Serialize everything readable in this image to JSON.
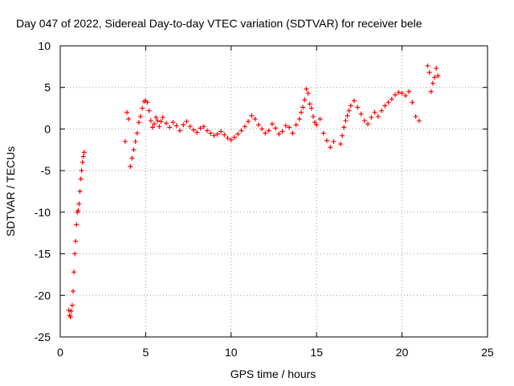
{
  "chart_data": {
    "type": "scatter",
    "title": "Day 047 of 2022, Sidereal Day-to-day VTEC variation (SDTVAR) for receiver bele",
    "xlabel": "GPS time / hours",
    "ylabel": "SDTVAR / TECUs",
    "xlim": [
      0,
      25
    ],
    "ylim": [
      -25,
      10
    ],
    "x_ticks": [
      0,
      5,
      10,
      15,
      20,
      25
    ],
    "y_ticks": [
      10,
      5,
      0,
      -5,
      -10,
      -15,
      -20,
      -25
    ],
    "x_tick_labels": [
      "0",
      "5",
      "10",
      "15",
      "20",
      "25"
    ],
    "y_tick_labels": [
      "10",
      "5",
      "0",
      "-5",
      "-10",
      "-15",
      "-20",
      "-25"
    ],
    "grid": true,
    "marker": "+",
    "color": "#ff0000",
    "series": [
      {
        "name": "SDTVAR",
        "x": [
          0.5,
          0.55,
          0.6,
          0.65,
          0.7,
          0.75,
          0.8,
          0.85,
          0.9,
          0.95,
          1.0,
          1.05,
          1.1,
          1.15,
          1.2,
          1.25,
          1.3,
          1.35,
          1.4,
          3.8,
          3.9,
          4.0,
          4.1,
          4.2,
          4.3,
          4.4,
          4.5,
          4.6,
          4.7,
          4.8,
          4.9,
          5.0,
          5.1,
          5.2,
          5.3,
          5.4,
          5.5,
          5.6,
          5.7,
          5.8,
          5.9,
          6.0,
          6.2,
          6.4,
          6.6,
          6.8,
          7.0,
          7.2,
          7.4,
          7.6,
          7.8,
          8.0,
          8.2,
          8.4,
          8.6,
          8.8,
          9.0,
          9.2,
          9.4,
          9.6,
          9.8,
          10.0,
          10.2,
          10.4,
          10.6,
          10.8,
          11.0,
          11.2,
          11.4,
          11.6,
          11.8,
          12.0,
          12.2,
          12.4,
          12.6,
          12.8,
          13.0,
          13.2,
          13.4,
          13.6,
          13.8,
          14.0,
          14.1,
          14.2,
          14.3,
          14.4,
          14.5,
          14.6,
          14.7,
          14.8,
          14.9,
          15.0,
          15.2,
          15.4,
          15.6,
          15.8,
          16.0,
          16.4,
          16.5,
          16.6,
          16.7,
          16.8,
          16.9,
          17.0,
          17.2,
          17.4,
          17.6,
          17.8,
          18.0,
          18.2,
          18.4,
          18.6,
          18.8,
          19.0,
          19.2,
          19.4,
          19.6,
          19.8,
          20.0,
          20.2,
          20.4,
          20.6,
          20.8,
          21.0,
          21.5,
          21.6,
          21.7,
          21.8,
          21.9,
          22.0,
          22.1
        ],
        "y": [
          -21.8,
          -22.4,
          -22.6,
          -21.9,
          -21.2,
          -19.5,
          -17.2,
          -15.0,
          -13.5,
          -11.5,
          -10.0,
          -9.8,
          -9.0,
          -7.5,
          -6.0,
          -5.0,
          -4.0,
          -3.3,
          -2.8,
          -1.5,
          2.0,
          1.2,
          -4.5,
          -3.5,
          -2.5,
          -1.5,
          -0.5,
          0.8,
          1.5,
          2.5,
          3.3,
          3.4,
          3.2,
          2.2,
          1.0,
          0.2,
          0.6,
          1.4,
          1.0,
          0.3,
          0.9,
          1.4,
          0.7,
          0.2,
          0.8,
          0.4,
          -0.2,
          0.5,
          0.9,
          0.3,
          -0.1,
          -0.4,
          0.1,
          0.3,
          -0.2,
          -0.5,
          -0.8,
          -0.6,
          -0.3,
          -0.7,
          -1.1,
          -1.3,
          -1.0,
          -0.6,
          -0.2,
          0.3,
          0.9,
          1.6,
          1.2,
          0.5,
          0.0,
          -0.5,
          -0.2,
          0.6,
          0.1,
          -0.6,
          -0.3,
          0.4,
          0.2,
          -0.5,
          0.5,
          1.2,
          2.0,
          2.6,
          3.5,
          4.8,
          4.3,
          3.0,
          2.5,
          1.5,
          0.8,
          0.5,
          1.2,
          -0.5,
          -1.4,
          -2.2,
          -1.5,
          -1.8,
          -0.8,
          0.2,
          1.0,
          1.6,
          2.2,
          2.8,
          3.4,
          2.6,
          1.8,
          1.0,
          0.6,
          1.4,
          2.0,
          1.5,
          2.2,
          2.8,
          3.2,
          3.6,
          4.1,
          4.4,
          4.3,
          4.0,
          4.5,
          3.2,
          1.5,
          1.0,
          7.6,
          6.8,
          4.5,
          5.5,
          6.2,
          7.3,
          6.4
        ]
      }
    ]
  }
}
